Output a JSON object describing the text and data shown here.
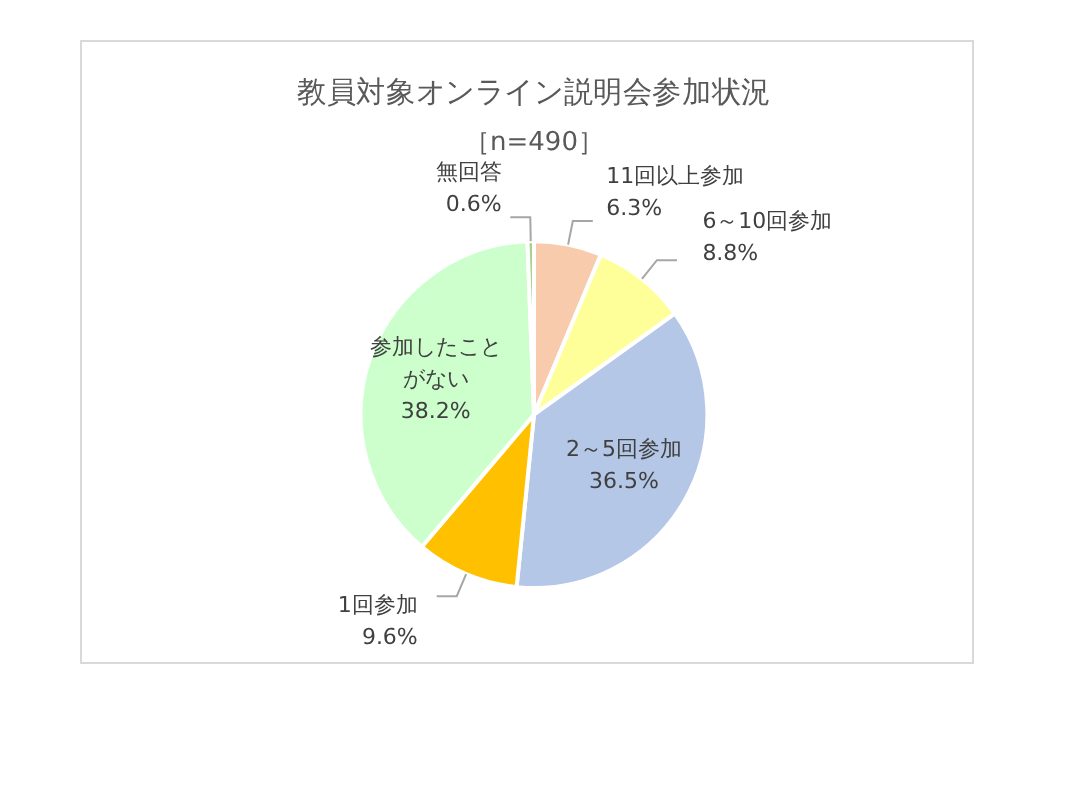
{
  "chart_data": {
    "type": "pie",
    "title": "教員対象オンライン説明会参加状況",
    "subtitle": "［n=490］",
    "categories": [
      "11回以上参加",
      "6～10回参加",
      "2～5回参加",
      "1回参加",
      "参加したことがない",
      "無回答"
    ],
    "values": [
      6.3,
      8.8,
      36.5,
      9.6,
      38.2,
      0.6
    ],
    "colors": [
      "#f8cbad",
      "#ffff99",
      "#b4c7e7",
      "#ffc000",
      "#ccffcc",
      "#a9d18e"
    ],
    "value_labels": [
      "6.3%",
      "8.8%",
      "36.5%",
      "9.6%",
      "38.2%",
      "0.6%"
    ],
    "legend": false
  }
}
